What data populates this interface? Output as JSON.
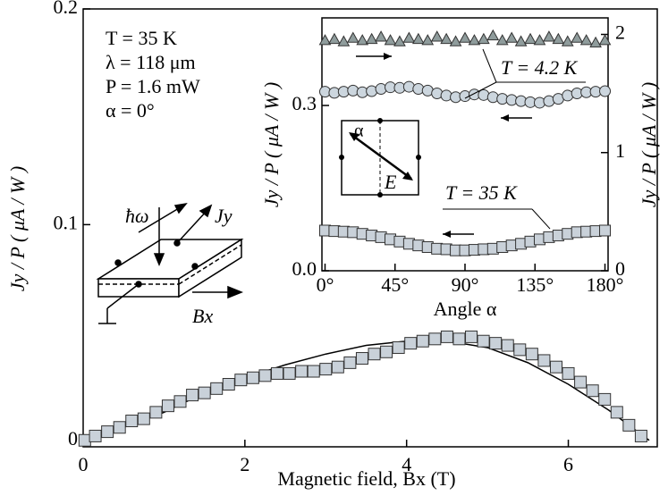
{
  "chart_data": [
    {
      "type": "scatter",
      "x_label": "Magnetic field, Bx (T)",
      "y_label": "Jy / P  ( μA / W )",
      "xlim": [
        0,
        7.1
      ],
      "xticks": [
        0,
        2,
        4,
        6
      ],
      "ylim": [
        -0.003,
        0.2
      ],
      "yticks": [
        0,
        0.1,
        0.2
      ],
      "x": [
        0.02,
        0.15,
        0.3,
        0.45,
        0.6,
        0.75,
        0.9,
        1.05,
        1.2,
        1.35,
        1.5,
        1.65,
        1.8,
        1.95,
        2.1,
        2.25,
        2.4,
        2.55,
        2.7,
        2.85,
        3.0,
        3.15,
        3.3,
        3.45,
        3.6,
        3.75,
        3.9,
        4.05,
        4.2,
        4.35,
        4.5,
        4.65,
        4.8,
        4.95,
        5.1,
        5.25,
        5.4,
        5.55,
        5.7,
        5.85,
        6.0,
        6.15,
        6.3,
        6.45,
        6.6,
        6.75,
        6.9
      ],
      "series": [
        {
          "color": "#c9d1d9",
          "marker": "square",
          "values": [
            0,
            0.002,
            0.004,
            0.006,
            0.009,
            0.01,
            0.013,
            0.016,
            0.018,
            0.021,
            0.022,
            0.024,
            0.026,
            0.028,
            0.029,
            0.03,
            0.031,
            0.031,
            0.032,
            0.032,
            0.033,
            0.034,
            0.036,
            0.038,
            0.04,
            0.041,
            0.043,
            0.045,
            0.046,
            0.047,
            0.048,
            0.047,
            0.048,
            0.046,
            0.045,
            0.044,
            0.042,
            0.04,
            0.037,
            0.034,
            0.031,
            0.027,
            0.023,
            0.019,
            0.013,
            0.007,
            0.002
          ]
        }
      ],
      "fit": {
        "x": [
          0,
          0.5,
          1,
          1.5,
          2,
          2.5,
          3,
          3.5,
          4,
          4.5,
          5,
          5.5,
          6,
          6.5,
          7
        ],
        "values": [
          0,
          0.006,
          0.013,
          0.022,
          0.029,
          0.035,
          0.04,
          0.044,
          0.046,
          0.046,
          0.043,
          0.036,
          0.026,
          0.014,
          0
        ]
      },
      "annotations": [
        "T = 35 K",
        "λ = 118 μm",
        "P = 1.6 mW",
        "α = 0°"
      ],
      "diagram_labels": [
        "ħω",
        "Jy",
        "Bx"
      ]
    },
    {
      "type": "scatter",
      "x_label": "Angle α",
      "y_label": "Jy / P  ( μA / W )",
      "y2_label": "Jy / P  ( μA / W )",
      "xlim": [
        -2,
        182
      ],
      "xticks": [
        {
          "value": 0,
          "label": "0°"
        },
        {
          "value": 45,
          "label": "45°"
        },
        {
          "value": 90,
          "label": "90°"
        },
        {
          "value": 135,
          "label": "135°"
        },
        {
          "value": 180,
          "label": "180°"
        }
      ],
      "ylim": [
        0,
        0.459
      ],
      "yticks": [
        {
          "value": 0,
          "label": "0.0"
        },
        0.3
      ],
      "y2lim": [
        0,
        2.14
      ],
      "y2ticks": [
        0,
        1,
        2
      ],
      "x": [
        0,
        6,
        12,
        18,
        24,
        30,
        36,
        42,
        48,
        54,
        60,
        66,
        72,
        78,
        84,
        90,
        96,
        102,
        108,
        114,
        120,
        126,
        132,
        138,
        144,
        150,
        156,
        162,
        168,
        174,
        180
      ],
      "series": [
        {
          "color": "#8f9c9c",
          "marker": "triangle",
          "axis": "y2",
          "values": [
            1.95,
            1.96,
            1.94,
            1.97,
            1.95,
            1.96,
            1.98,
            1.95,
            1.94,
            1.97,
            1.96,
            1.95,
            1.98,
            1.96,
            1.94,
            1.97,
            1.95,
            1.96,
            1.99,
            1.95,
            1.97,
            1.94,
            1.96,
            1.95,
            1.98,
            1.96,
            1.94,
            1.97,
            1.95,
            1.93,
            1.95
          ]
        },
        {
          "color": "#ccd6de",
          "marker": "circle",
          "values": [
            0.325,
            0.323,
            0.325,
            0.327,
            0.324,
            0.326,
            0.33,
            0.333,
            0.332,
            0.334,
            0.33,
            0.327,
            0.322,
            0.318,
            0.315,
            0.317,
            0.32,
            0.319,
            0.315,
            0.312,
            0.31,
            0.308,
            0.306,
            0.305,
            0.308,
            0.312,
            0.318,
            0.322,
            0.324,
            0.325,
            0.326
          ]
        },
        {
          "color": "#c9d1d9",
          "marker": "square",
          "values": [
            0.073,
            0.072,
            0.071,
            0.07,
            0.067,
            0.064,
            0.061,
            0.057,
            0.053,
            0.049,
            0.046,
            0.043,
            0.04,
            0.039,
            0.037,
            0.037,
            0.038,
            0.039,
            0.04,
            0.043,
            0.046,
            0.049,
            0.053,
            0.057,
            0.061,
            0.064,
            0.067,
            0.07,
            0.071,
            0.072,
            0.073
          ]
        }
      ],
      "fit": {
        "x": [
          0,
          15,
          30,
          45,
          60,
          75,
          90,
          105,
          120,
          135,
          150,
          165,
          180
        ],
        "values": [
          0.073,
          0.071,
          0.064,
          0.055,
          0.046,
          0.039,
          0.037,
          0.039,
          0.046,
          0.055,
          0.064,
          0.071,
          0.073
        ]
      },
      "annotations": [
        "T = 4.2 K",
        "T = 35 K"
      ],
      "diagram_labels": [
        "α",
        "E"
      ]
    }
  ]
}
